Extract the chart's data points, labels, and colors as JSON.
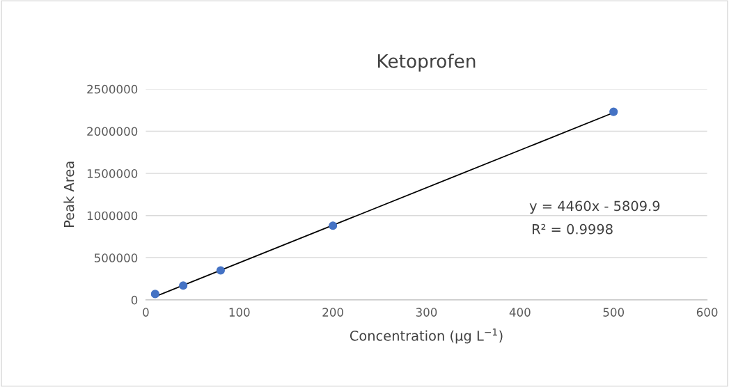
{
  "chart_data": {
    "type": "scatter",
    "title": "Ketoprofen",
    "xlabel": "Concentration (µg L$^{−1}$)",
    "ylabel": "Peak Area",
    "series": [
      {
        "color": "#4472c4",
        "marker": "circle",
        "x": [
          10,
          40,
          80,
          200,
          500
        ],
        "values": [
          70000,
          170000,
          350000,
          880000,
          2230000
        ]
      },
      {
        "type": "line",
        "color": "#000000",
        "x": [
          10,
          500
        ],
        "values": [
          40000,
          2220000
        ]
      }
    ],
    "xlim": [
      0,
      600
    ],
    "xticks": [
      0,
      100,
      200,
      300,
      400,
      500,
      600
    ],
    "ylim": [
      0,
      2500000
    ],
    "yticks": [
      0,
      500000,
      1000000,
      1500000,
      2000000,
      2500000
    ],
    "grid": "y",
    "legend": false,
    "annotations": [
      "y = 4460x - 5809.9",
      "R² = 0.9998"
    ]
  }
}
